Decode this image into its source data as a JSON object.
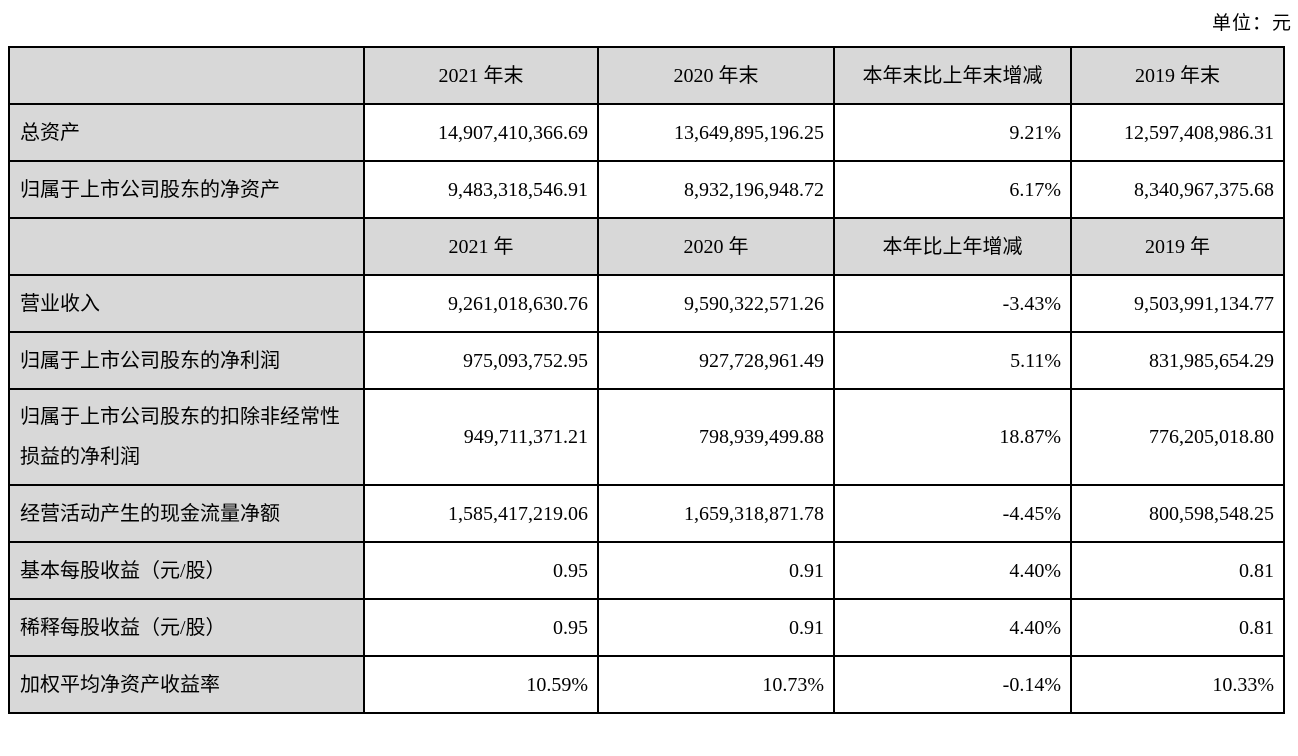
{
  "page": {
    "unit_label": "单位：元"
  },
  "colors": {
    "header_bg": "#d8d8d8",
    "border": "#000000",
    "text": "#000000"
  },
  "table": {
    "rows": [
      {
        "type": "header",
        "cells": [
          "",
          "2021 年末",
          "2020 年末",
          "本年末比上年末增减",
          "2019 年末"
        ]
      },
      {
        "type": "data",
        "cells": [
          "总资产",
          "14,907,410,366.69",
          "13,649,895,196.25",
          "9.21%",
          "12,597,408,986.31"
        ]
      },
      {
        "type": "data",
        "cells": [
          "归属于上市公司股东的净资产",
          "9,483,318,546.91",
          "8,932,196,948.72",
          "6.17%",
          "8,340,967,375.68"
        ]
      },
      {
        "type": "header",
        "cells": [
          "",
          "2021 年",
          "2020 年",
          "本年比上年增减",
          "2019 年"
        ]
      },
      {
        "type": "data",
        "cells": [
          "营业收入",
          "9,261,018,630.76",
          "9,590,322,571.26",
          "-3.43%",
          "9,503,991,134.77"
        ]
      },
      {
        "type": "data",
        "cells": [
          "归属于上市公司股东的净利润",
          "975,093,752.95",
          "927,728,961.49",
          "5.11%",
          "831,985,654.29"
        ]
      },
      {
        "type": "data",
        "cells": [
          "归属于上市公司股东的扣除非经常性损益的净利润",
          "949,711,371.21",
          "798,939,499.88",
          "18.87%",
          "776,205,018.80"
        ]
      },
      {
        "type": "data",
        "cells": [
          "经营活动产生的现金流量净额",
          "1,585,417,219.06",
          "1,659,318,871.78",
          "-4.45%",
          "800,598,548.25"
        ]
      },
      {
        "type": "data",
        "cells": [
          "基本每股收益（元/股）",
          "0.95",
          "0.91",
          "4.40%",
          "0.81"
        ]
      },
      {
        "type": "data",
        "cells": [
          "稀释每股收益（元/股）",
          "0.95",
          "0.91",
          "4.40%",
          "0.81"
        ]
      },
      {
        "type": "data",
        "cells": [
          "加权平均净资产收益率",
          "10.59%",
          "10.73%",
          "-0.14%",
          "10.33%"
        ]
      }
    ]
  }
}
